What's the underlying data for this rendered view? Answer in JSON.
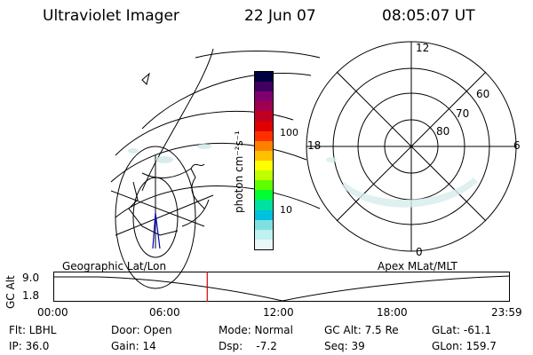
{
  "header": {
    "instrument": "Ultraviolet Imager",
    "date": "22 Jun 07",
    "time": "08:05:07 UT"
  },
  "colorbar": {
    "unit": "photon cm⁻²s⁻¹",
    "ticks": [
      "100",
      "10"
    ],
    "colors": [
      "#000040",
      "#400060",
      "#800070",
      "#a00050",
      "#c00020",
      "#e00000",
      "#ff3000",
      "#ff8000",
      "#ffc000",
      "#ffff00",
      "#c0ff00",
      "#60ff00",
      "#00ff30",
      "#00e0a0",
      "#00c0e0",
      "#80e0e0",
      "#c0f0f0",
      "#e8f8f8"
    ]
  },
  "left_map": {
    "caption": "Geographic Lat/Lon"
  },
  "right_map": {
    "caption": "Apex MLat/MLT",
    "mlt_labels": {
      "top": "12",
      "left": "18",
      "right": "6",
      "bottom": "0"
    },
    "lat_labels": [
      "60",
      "70",
      "80"
    ]
  },
  "altitude_plot": {
    "ylabel": "GC Alt",
    "yticks": [
      "9.0",
      "1.8"
    ],
    "xticks": [
      "00:00",
      "06:00",
      "12:00",
      "18:00",
      "23:59"
    ],
    "marker_color": "#d00000",
    "marker_time_hours": 8.085
  },
  "footer": {
    "flt": "Flt: LBHL",
    "door": "Door: Open",
    "mode": "Mode: Normal",
    "gcalt": "GC Alt: 7.5 Re",
    "glat": "GLat: -61.1",
    "ip": "IP: 36.0",
    "gain": "Gain: 14",
    "dsp": "Dsp:    -7.2",
    "seq": "Seq: 39",
    "glon": "GLon: 159.7"
  }
}
